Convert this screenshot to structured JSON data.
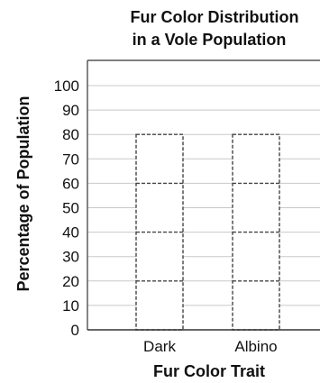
{
  "chart_data": {
    "type": "bar",
    "title": "Fur Color Distribution in a Vole Population",
    "title_lines": [
      "Fur Color Distribution",
      "in a Vole Population"
    ],
    "xlabel": "Fur Color Trait",
    "ylabel": "Percentage of Population",
    "categories": [
      "Dark",
      "Albino"
    ],
    "values": [
      80,
      80
    ],
    "ylim": [
      0,
      100
    ],
    "yticks": [
      0,
      10,
      20,
      30,
      40,
      50,
      60,
      70,
      80,
      90,
      100
    ],
    "ytick_labels": [
      "0",
      "10",
      "20",
      "30",
      "40",
      "50",
      "60",
      "70",
      "80",
      "90",
      "100"
    ],
    "bar_segments": [
      20,
      40,
      60
    ],
    "grid": true,
    "bar_style": "dashed-outline"
  },
  "colors": {
    "grid": "#c8c8c8",
    "axis": "#333333",
    "bar_outline": "#444444",
    "bar_fill": "#ffffff"
  }
}
